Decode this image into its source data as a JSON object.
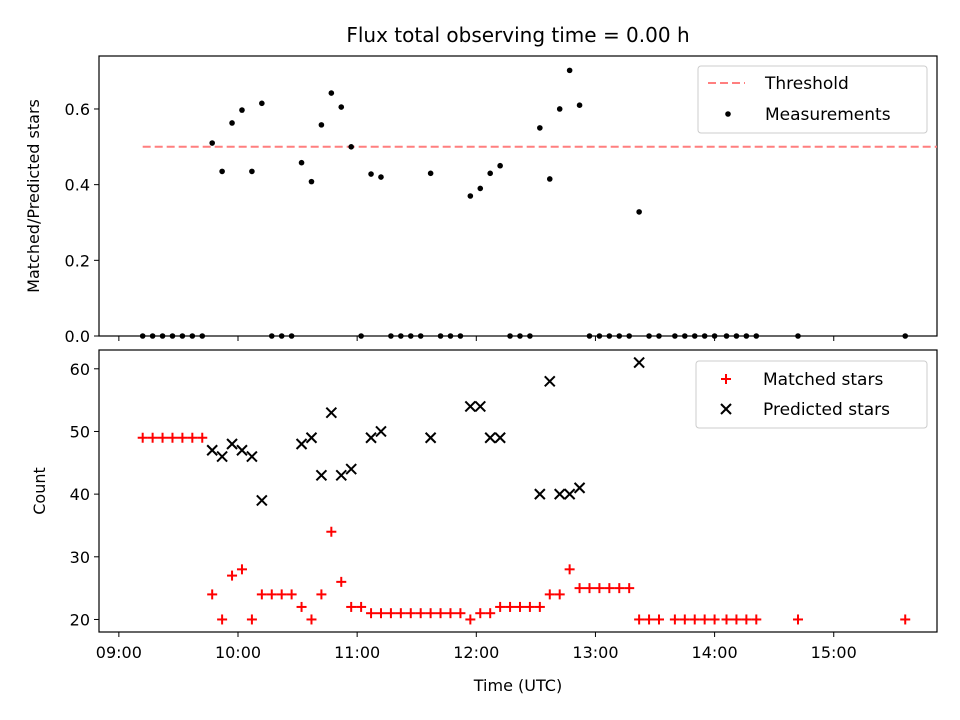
{
  "chart_data": [
    {
      "type": "scatter",
      "title": "Flux total observing time = 0.00 h",
      "xlabel": "",
      "ylabel": "Matched/Predicted stars",
      "xlim": [
        "08:50",
        "15:52"
      ],
      "ylim": [
        0,
        0.74
      ],
      "yticks": [
        0.0,
        0.2,
        0.4,
        0.6
      ],
      "ytick_labels": [
        "0.0",
        "0.2",
        "0.4",
        "0.6"
      ],
      "grid": false,
      "legend_position": "top-right",
      "threshold": {
        "name": "Threshold",
        "y": 0.5,
        "x_start": "09:12",
        "x_end": "15:52",
        "color": "#ff7f7f"
      },
      "series": [
        {
          "name": "Measurements",
          "color": "#000000",
          "points": [
            {
              "x": "09:12",
              "y": 0.0
            },
            {
              "x": "09:17",
              "y": 0.0
            },
            {
              "x": "09:22",
              "y": 0.0
            },
            {
              "x": "09:27",
              "y": 0.0
            },
            {
              "x": "09:32",
              "y": 0.0
            },
            {
              "x": "09:37",
              "y": 0.0
            },
            {
              "x": "09:42",
              "y": 0.0
            },
            {
              "x": "09:47",
              "y": 0.51
            },
            {
              "x": "09:52",
              "y": 0.435
            },
            {
              "x": "09:57",
              "y": 0.563
            },
            {
              "x": "10:02",
              "y": 0.597
            },
            {
              "x": "10:07",
              "y": 0.435
            },
            {
              "x": "10:12",
              "y": 0.615
            },
            {
              "x": "10:17",
              "y": 0.0
            },
            {
              "x": "10:22",
              "y": 0.0
            },
            {
              "x": "10:27",
              "y": 0.0
            },
            {
              "x": "10:32",
              "y": 0.458
            },
            {
              "x": "10:37",
              "y": 0.408
            },
            {
              "x": "10:42",
              "y": 0.558
            },
            {
              "x": "10:47",
              "y": 0.642
            },
            {
              "x": "10:52",
              "y": 0.605
            },
            {
              "x": "10:57",
              "y": 0.5
            },
            {
              "x": "11:02",
              "y": 0.0
            },
            {
              "x": "11:07",
              "y": 0.428
            },
            {
              "x": "11:12",
              "y": 0.42
            },
            {
              "x": "11:17",
              "y": 0.0
            },
            {
              "x": "11:22",
              "y": 0.0
            },
            {
              "x": "11:27",
              "y": 0.0
            },
            {
              "x": "11:32",
              "y": 0.0
            },
            {
              "x": "11:37",
              "y": 0.43
            },
            {
              "x": "11:42",
              "y": 0.0
            },
            {
              "x": "11:47",
              "y": 0.0
            },
            {
              "x": "11:52",
              "y": 0.0
            },
            {
              "x": "11:57",
              "y": 0.37
            },
            {
              "x": "12:02",
              "y": 0.39
            },
            {
              "x": "12:07",
              "y": 0.43
            },
            {
              "x": "12:12",
              "y": 0.45
            },
            {
              "x": "12:17",
              "y": 0.0
            },
            {
              "x": "12:22",
              "y": 0.0
            },
            {
              "x": "12:27",
              "y": 0.0
            },
            {
              "x": "12:32",
              "y": 0.55
            },
            {
              "x": "12:37",
              "y": 0.415
            },
            {
              "x": "12:42",
              "y": 0.6
            },
            {
              "x": "12:47",
              "y": 0.702
            },
            {
              "x": "12:52",
              "y": 0.61
            },
            {
              "x": "12:57",
              "y": 0.0
            },
            {
              "x": "13:02",
              "y": 0.0
            },
            {
              "x": "13:07",
              "y": 0.0
            },
            {
              "x": "13:12",
              "y": 0.0
            },
            {
              "x": "13:17",
              "y": 0.0
            },
            {
              "x": "13:22",
              "y": 0.328
            },
            {
              "x": "13:27",
              "y": 0.0
            },
            {
              "x": "13:32",
              "y": 0.0
            },
            {
              "x": "13:40",
              "y": 0.0
            },
            {
              "x": "13:45",
              "y": 0.0
            },
            {
              "x": "13:50",
              "y": 0.0
            },
            {
              "x": "13:55",
              "y": 0.0
            },
            {
              "x": "14:00",
              "y": 0.0
            },
            {
              "x": "14:06",
              "y": 0.0
            },
            {
              "x": "14:11",
              "y": 0.0
            },
            {
              "x": "14:16",
              "y": 0.0
            },
            {
              "x": "14:21",
              "y": 0.0
            },
            {
              "x": "14:42",
              "y": 0.0
            },
            {
              "x": "15:36",
              "y": 0.0
            }
          ]
        }
      ]
    },
    {
      "type": "scatter",
      "title": "",
      "xlabel": "Time (UTC)",
      "ylabel": "Count",
      "xlim": [
        "08:50",
        "15:52"
      ],
      "ylim": [
        18,
        63
      ],
      "xticks": [
        "09:00",
        "10:00",
        "11:00",
        "12:00",
        "13:00",
        "14:00",
        "15:00"
      ],
      "xtick_labels": [
        "09:00",
        "10:00",
        "11:00",
        "12:00",
        "13:00",
        "14:00",
        "15:00"
      ],
      "yticks": [
        20,
        30,
        40,
        50,
        60
      ],
      "ytick_labels": [
        "20",
        "30",
        "40",
        "50",
        "60"
      ],
      "grid": false,
      "legend_position": "top-right",
      "series": [
        {
          "name": "Matched stars",
          "marker": "plus",
          "color": "#ff0000",
          "points": [
            {
              "x": "09:12",
              "y": 49
            },
            {
              "x": "09:17",
              "y": 49
            },
            {
              "x": "09:22",
              "y": 49
            },
            {
              "x": "09:27",
              "y": 49
            },
            {
              "x": "09:32",
              "y": 49
            },
            {
              "x": "09:37",
              "y": 49
            },
            {
              "x": "09:42",
              "y": 49
            },
            {
              "x": "09:47",
              "y": 24
            },
            {
              "x": "09:52",
              "y": 20
            },
            {
              "x": "09:57",
              "y": 27
            },
            {
              "x": "10:02",
              "y": 28
            },
            {
              "x": "10:07",
              "y": 20
            },
            {
              "x": "10:12",
              "y": 24
            },
            {
              "x": "10:17",
              "y": 24
            },
            {
              "x": "10:22",
              "y": 24
            },
            {
              "x": "10:27",
              "y": 24
            },
            {
              "x": "10:32",
              "y": 22
            },
            {
              "x": "10:37",
              "y": 20
            },
            {
              "x": "10:42",
              "y": 24
            },
            {
              "x": "10:47",
              "y": 34
            },
            {
              "x": "10:52",
              "y": 26
            },
            {
              "x": "10:57",
              "y": 22
            },
            {
              "x": "11:02",
              "y": 22
            },
            {
              "x": "11:07",
              "y": 21
            },
            {
              "x": "11:12",
              "y": 21
            },
            {
              "x": "11:17",
              "y": 21
            },
            {
              "x": "11:22",
              "y": 21
            },
            {
              "x": "11:27",
              "y": 21
            },
            {
              "x": "11:32",
              "y": 21
            },
            {
              "x": "11:37",
              "y": 21
            },
            {
              "x": "11:42",
              "y": 21
            },
            {
              "x": "11:47",
              "y": 21
            },
            {
              "x": "11:52",
              "y": 21
            },
            {
              "x": "11:57",
              "y": 20
            },
            {
              "x": "12:02",
              "y": 21
            },
            {
              "x": "12:07",
              "y": 21
            },
            {
              "x": "12:12",
              "y": 22
            },
            {
              "x": "12:17",
              "y": 22
            },
            {
              "x": "12:22",
              "y": 22
            },
            {
              "x": "12:27",
              "y": 22
            },
            {
              "x": "12:32",
              "y": 22
            },
            {
              "x": "12:37",
              "y": 24
            },
            {
              "x": "12:42",
              "y": 24
            },
            {
              "x": "12:47",
              "y": 28
            },
            {
              "x": "12:52",
              "y": 25
            },
            {
              "x": "12:57",
              "y": 25
            },
            {
              "x": "13:02",
              "y": 25
            },
            {
              "x": "13:07",
              "y": 25
            },
            {
              "x": "13:12",
              "y": 25
            },
            {
              "x": "13:17",
              "y": 25
            },
            {
              "x": "13:22",
              "y": 20
            },
            {
              "x": "13:27",
              "y": 20
            },
            {
              "x": "13:32",
              "y": 20
            },
            {
              "x": "13:40",
              "y": 20
            },
            {
              "x": "13:45",
              "y": 20
            },
            {
              "x": "13:50",
              "y": 20
            },
            {
              "x": "13:55",
              "y": 20
            },
            {
              "x": "14:00",
              "y": 20
            },
            {
              "x": "14:06",
              "y": 20
            },
            {
              "x": "14:11",
              "y": 20
            },
            {
              "x": "14:16",
              "y": 20
            },
            {
              "x": "14:21",
              "y": 20
            },
            {
              "x": "14:42",
              "y": 20
            },
            {
              "x": "15:36",
              "y": 20
            }
          ]
        },
        {
          "name": "Predicted stars",
          "marker": "x",
          "color": "#000000",
          "points": [
            {
              "x": "09:47",
              "y": 47
            },
            {
              "x": "09:52",
              "y": 46
            },
            {
              "x": "09:57",
              "y": 48
            },
            {
              "x": "10:02",
              "y": 47
            },
            {
              "x": "10:07",
              "y": 46
            },
            {
              "x": "10:12",
              "y": 39
            },
            {
              "x": "10:32",
              "y": 48
            },
            {
              "x": "10:37",
              "y": 49
            },
            {
              "x": "10:42",
              "y": 43
            },
            {
              "x": "10:47",
              "y": 53
            },
            {
              "x": "10:52",
              "y": 43
            },
            {
              "x": "10:57",
              "y": 44
            },
            {
              "x": "11:07",
              "y": 49
            },
            {
              "x": "11:12",
              "y": 50
            },
            {
              "x": "11:37",
              "y": 49
            },
            {
              "x": "11:57",
              "y": 54
            },
            {
              "x": "12:02",
              "y": 54
            },
            {
              "x": "12:07",
              "y": 49
            },
            {
              "x": "12:12",
              "y": 49
            },
            {
              "x": "12:32",
              "y": 40
            },
            {
              "x": "12:37",
              "y": 58
            },
            {
              "x": "12:42",
              "y": 40
            },
            {
              "x": "12:47",
              "y": 40
            },
            {
              "x": "12:52",
              "y": 41
            },
            {
              "x": "13:22",
              "y": 61
            }
          ]
        }
      ]
    }
  ]
}
